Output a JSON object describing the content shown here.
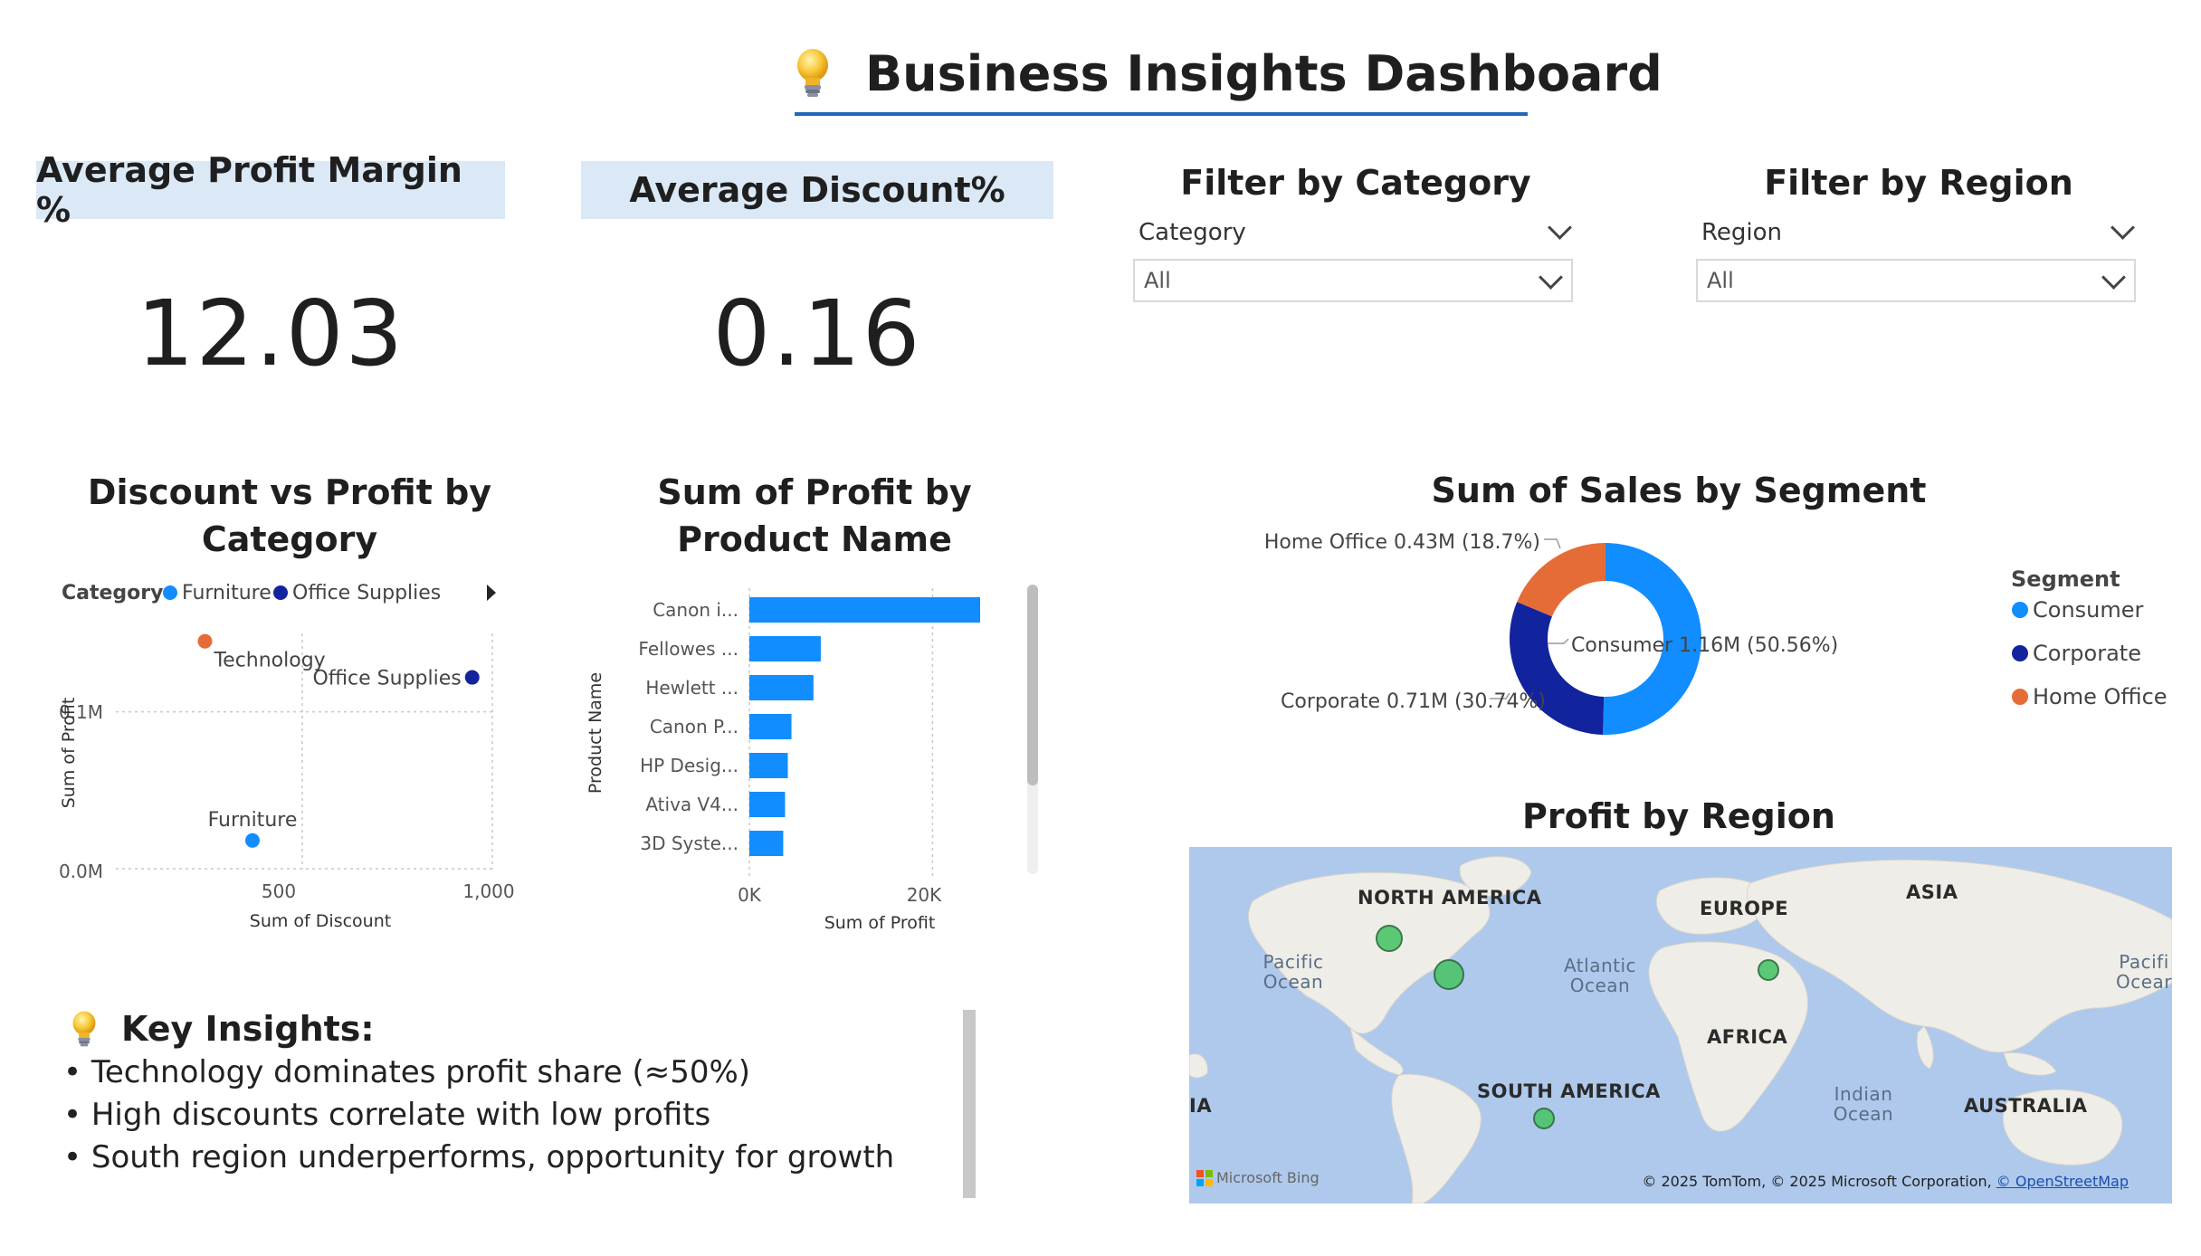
{
  "header": {
    "title": "Business Insights Dashboard",
    "icon": "lightbulb-icon"
  },
  "kpis": [
    {
      "title": "Average Profit Margin %",
      "value": "12.03"
    },
    {
      "title": "Average Discount%",
      "value": "0.16"
    }
  ],
  "filters": [
    {
      "title": "Filter by Category",
      "label": "Category",
      "value": "All"
    },
    {
      "title": "Filter by Region",
      "label": "Region",
      "value": "All"
    }
  ],
  "scatter": {
    "title": "Discount vs Profit by Category",
    "legend_label": "Category",
    "legend_items": [
      "Furniture",
      "Office Supplies"
    ],
    "colors": {
      "Furniture": "#118dff",
      "Office Supplies": "#12239e",
      "Technology": "#e66c37"
    },
    "x_ticks": [
      "500",
      "1,000"
    ],
    "y_ticks": [
      "0.1M",
      "0.0M"
    ],
    "xlabel": "Sum of Discount",
    "ylabel": "Sum of Profit"
  },
  "bar": {
    "title": "Sum of Profit by Product Name",
    "ylabel": "Product Name",
    "xlabel": "Sum of Profit",
    "x_ticks": [
      "0K",
      "20K"
    ],
    "color": "#118dff"
  },
  "donut": {
    "title": "Sum of Sales by Segment",
    "legend_title": "Segment",
    "labels": [
      "Consumer 1.16M (50.56%)",
      "Corporate 0.71M (30.74%)",
      "Home Office 0.43M (18.7%)"
    ]
  },
  "map": {
    "title": "Profit by Region",
    "continents": [
      "NORTH AMERICA",
      "EUROPE",
      "ASIA",
      "AFRICA",
      "SOUTH AMERICA",
      "AUSTRALIA",
      "IA"
    ],
    "oceans": [
      "Pacific Ocean",
      "Atlantic Ocean",
      "Indian Ocean",
      "Pacifi Ocear"
    ],
    "bing_logo": "Microsoft Bing",
    "copyright": "© 2025 TomTom, © 2025 Microsoft Corporation,",
    "osm_link": "© OpenStreetMap"
  },
  "insights": {
    "title": "Key Insights:",
    "items": [
      "• Technology dominates profit share (≈50%)",
      "• High discounts correlate with low profits",
      "• South region underperforms, opportunity for growth"
    ]
  },
  "chart_data": [
    {
      "type": "scatter",
      "title": "Discount vs Profit by Category",
      "xlabel": "Sum of Discount",
      "ylabel": "Sum of Profit",
      "xlim": [
        0,
        1000
      ],
      "ylim": [
        0,
        0.15
      ],
      "legend": "top-left",
      "series": [
        {
          "name": "Technology",
          "x": 244,
          "y": 0.145
        },
        {
          "name": "Office Supplies",
          "x": 947,
          "y": 0.122
        },
        {
          "name": "Furniture",
          "x": 369,
          "y": 0.018
        }
      ]
    },
    {
      "type": "bar",
      "title": "Sum of Profit by Product Name",
      "xlabel": "Sum of Profit",
      "ylabel": "Product Name",
      "xlim": [
        0,
        25200
      ],
      "categories": [
        "Canon i...",
        "Fellowes ...",
        "Hewlett ...",
        "Canon P...",
        "HP Desig...",
        "Ativa V4...",
        "3D Syste..."
      ],
      "values": [
        25200,
        7800,
        7000,
        4600,
        4200,
        3900,
        3700
      ]
    },
    {
      "type": "pie",
      "title": "Sum of Sales by Segment",
      "categories": [
        "Consumer",
        "Corporate",
        "Home Office"
      ],
      "values": [
        1.16,
        0.71,
        0.43
      ],
      "percent": [
        50.56,
        30.74,
        18.7
      ],
      "colors": [
        "#118dff",
        "#12239e",
        "#e66c37"
      ],
      "legend": "right"
    }
  ]
}
